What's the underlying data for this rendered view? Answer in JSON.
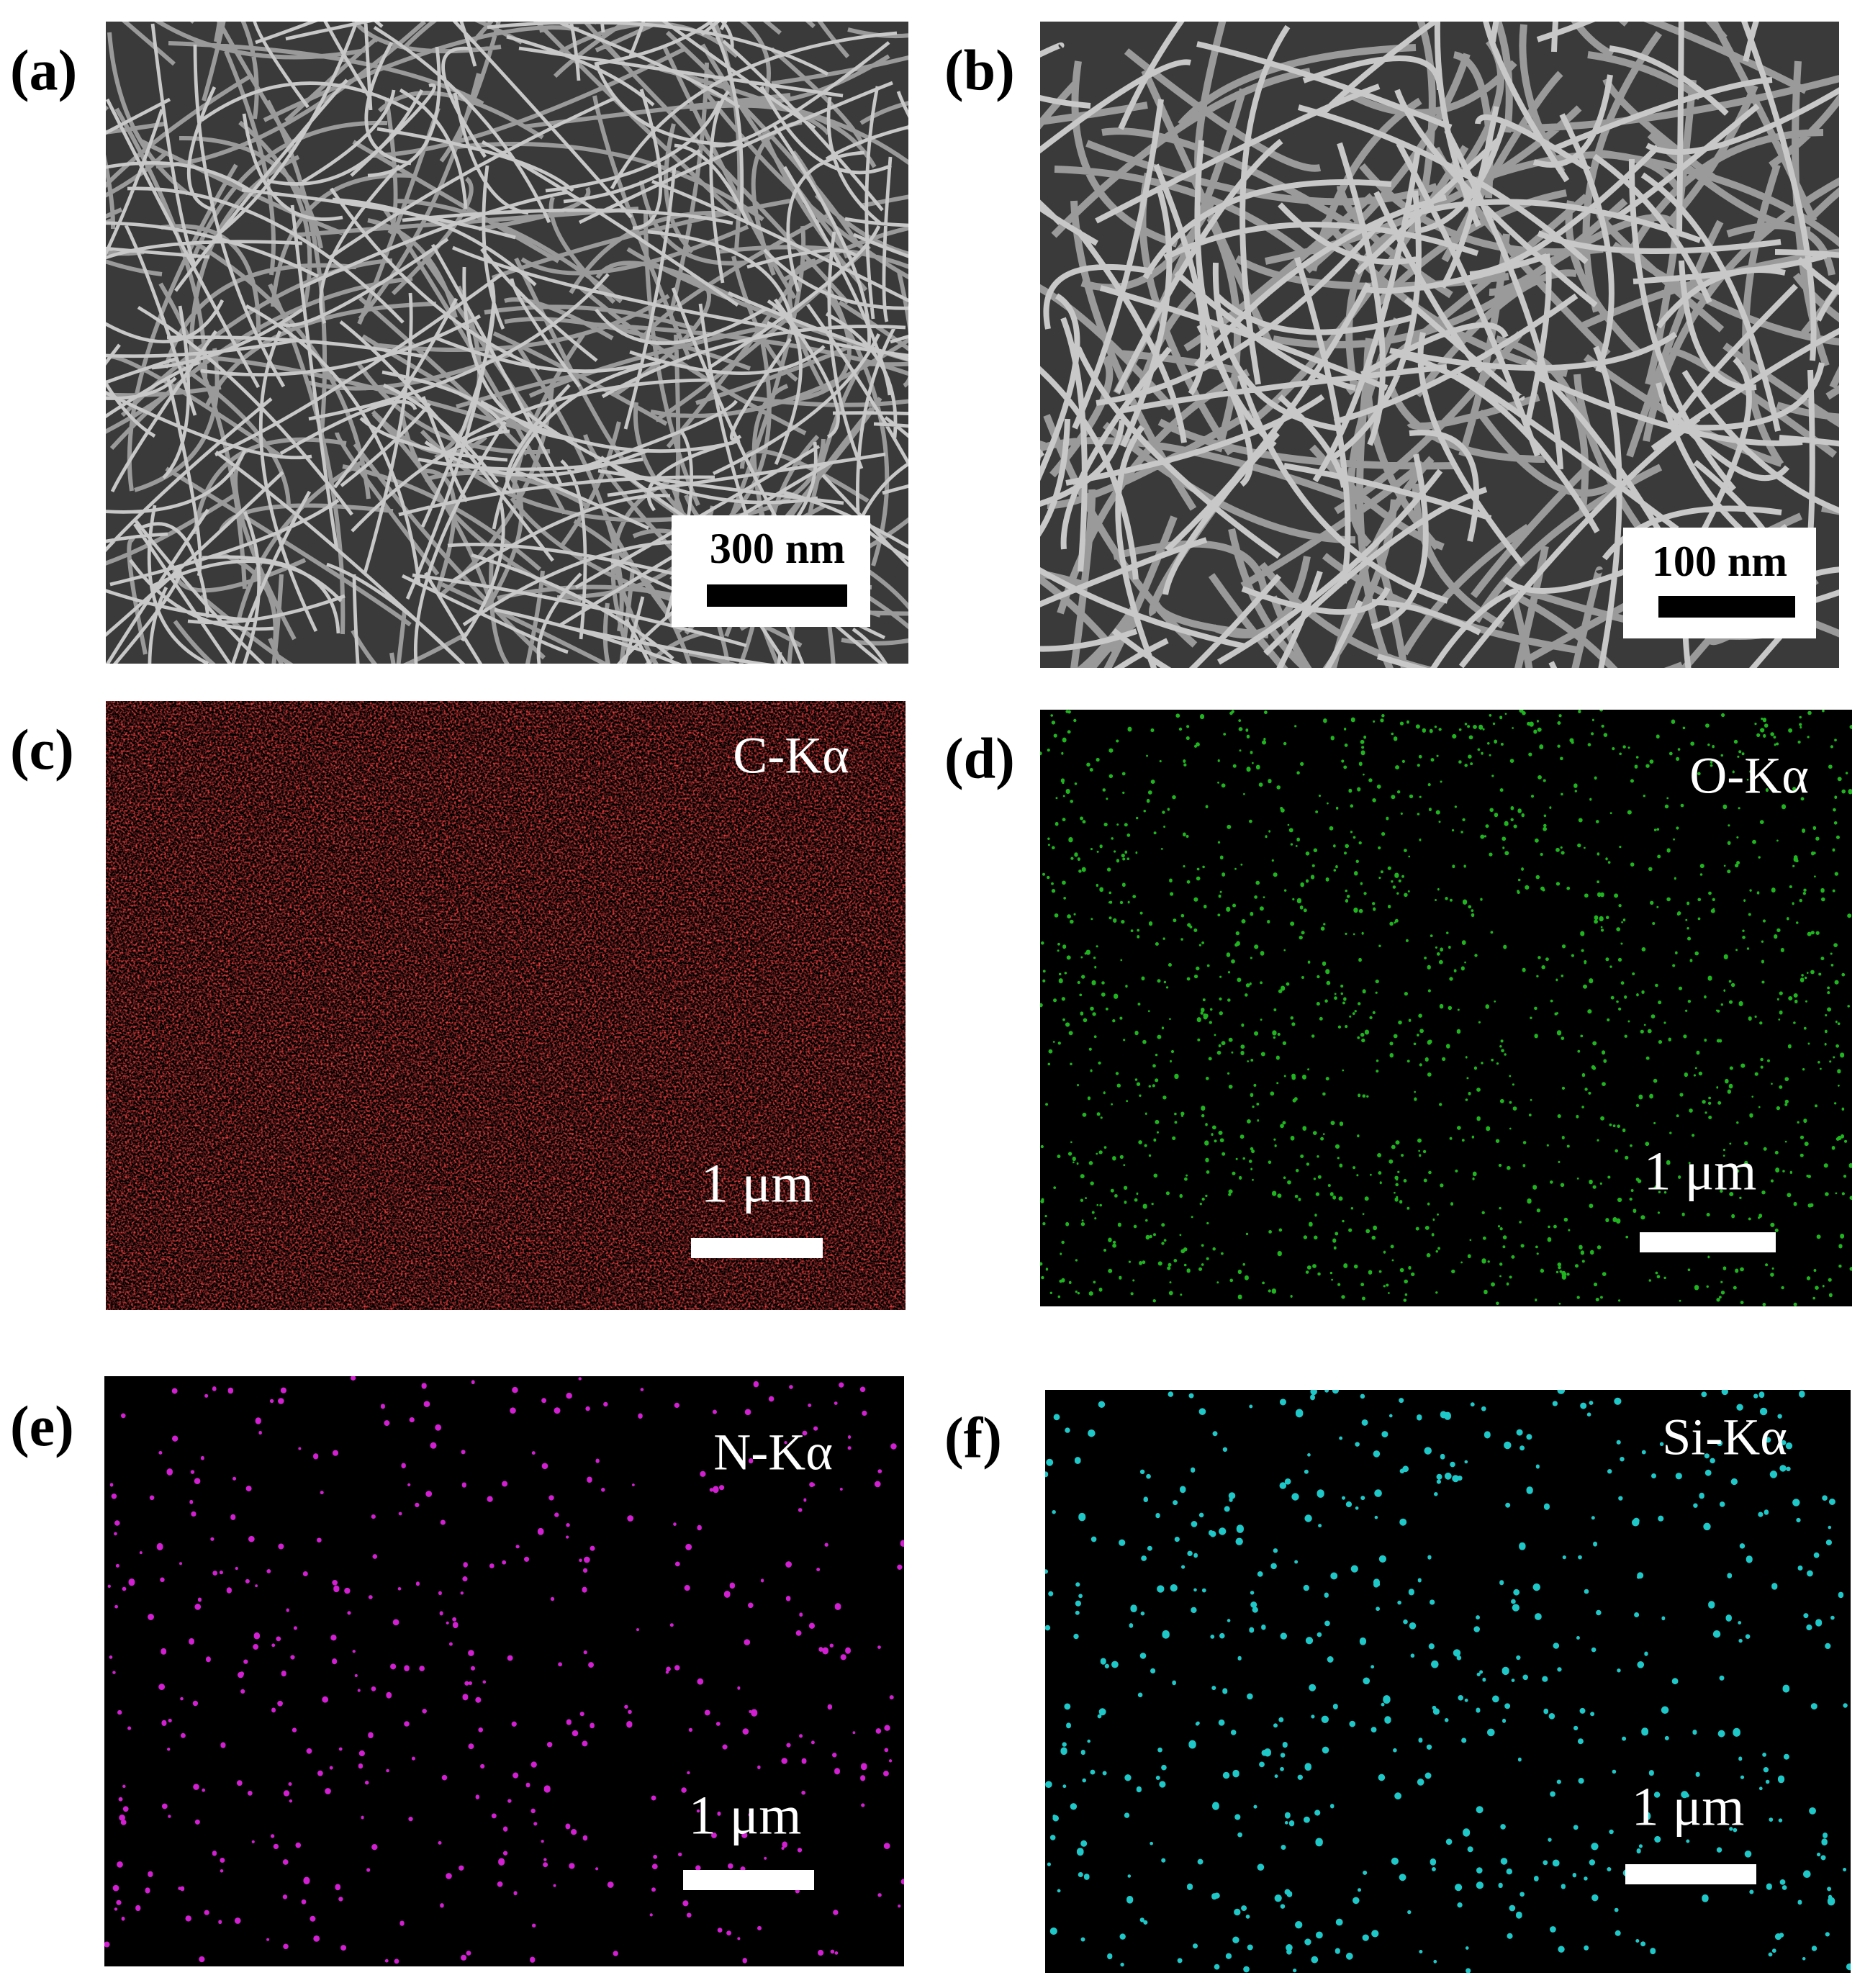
{
  "panels": [
    {
      "label": "(a)",
      "scale_bar": "300 nm"
    },
    {
      "label": "(b)",
      "scale_bar": "100 nm"
    },
    {
      "label": "(c)",
      "element": "C-Kα",
      "scale_bar": "1 μm"
    },
    {
      "label": "(d)",
      "element": "O-Kα",
      "scale_bar": "1 μm"
    },
    {
      "label": "(e)",
      "element": "N-Kα",
      "scale_bar": "1 μm"
    },
    {
      "label": "(f)",
      "element": "Si-Kα",
      "scale_bar": "1 μm"
    }
  ]
}
